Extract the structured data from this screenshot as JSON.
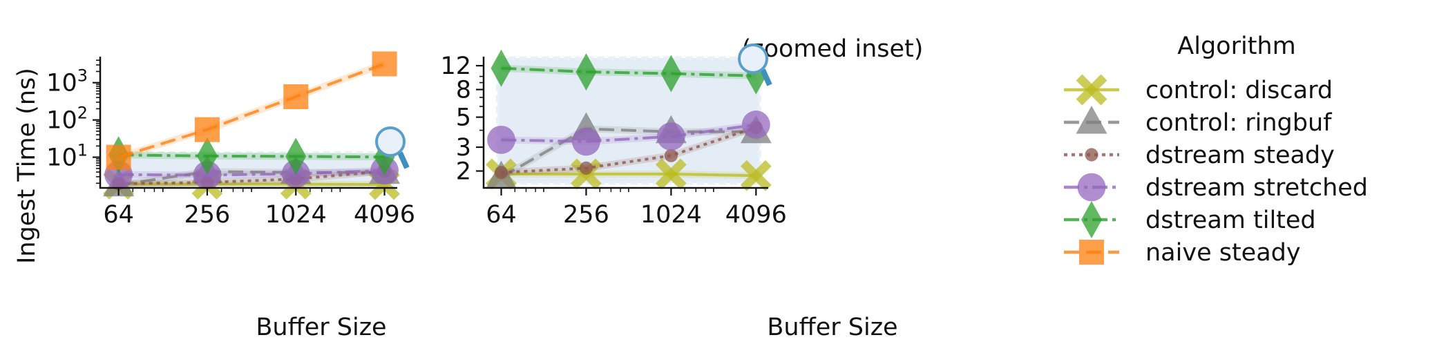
{
  "legend": {
    "title": "Algorithm",
    "items": [
      {
        "label": "control: discard",
        "color": "#bcbd22",
        "marker": "x-marker",
        "dash": "solid"
      },
      {
        "label": "control: ringbuf",
        "color": "#7f7f7f",
        "marker": "triangle-marker",
        "dash": "dashed"
      },
      {
        "label": "dstream steady",
        "color": "#8c564b",
        "marker": "dot-marker",
        "dash": "dotted"
      },
      {
        "label": "dstream stretched",
        "color": "#9467bd",
        "marker": "circle-marker",
        "dash": "dashdot"
      },
      {
        "label": "dstream tilted",
        "color": "#2ca02c",
        "marker": "diamond-marker",
        "dash": "dashdot"
      },
      {
        "label": "naive steady",
        "color": "#ff7f0e",
        "marker": "square-marker",
        "dash": "dashed"
      }
    ]
  },
  "inset_icon": "magnifier-icon",
  "chart_data": [
    {
      "type": "line",
      "title": "",
      "xlabel": "Buffer Size",
      "ylabel": "Ingest Time (ns)",
      "x": [
        64,
        256,
        1024,
        4096
      ],
      "x_tick_labels": [
        "64",
        "256",
        "1024",
        "4096"
      ],
      "xscale": "log2",
      "yscale": "log10",
      "ylim": [
        1.5,
        5000
      ],
      "y_ticks": [
        {
          "value": 10,
          "base": "10",
          "exp": "1"
        },
        {
          "value": 100,
          "base": "10",
          "exp": "2"
        },
        {
          "value": 1000,
          "base": "10",
          "exp": "3"
        }
      ],
      "grid": false,
      "inset_region": {
        "x": [
          64,
          4096
        ],
        "y": [
          1.5,
          13
        ]
      },
      "series": [
        {
          "name": "control: discard",
          "values": [
            1.9,
            1.9,
            1.9,
            1.85
          ]
        },
        {
          "name": "control: ringbuf",
          "values": [
            1.8,
            4.1,
            3.9,
            3.9
          ]
        },
        {
          "name": "dstream steady",
          "values": [
            1.95,
            2.1,
            2.6,
            4.2
          ]
        },
        {
          "name": "dstream stretched",
          "values": [
            3.4,
            3.3,
            3.6,
            4.4
          ]
        },
        {
          "name": "dstream tilted",
          "values": [
            11.5,
            10.8,
            10.5,
            10.1
          ]
        },
        {
          "name": "naive steady",
          "values": [
            10,
            55,
            420,
            3200
          ]
        }
      ]
    },
    {
      "type": "line",
      "title": "(zoomed inset)",
      "xlabel": "Buffer Size",
      "ylabel": "",
      "x": [
        64,
        256,
        1024,
        4096
      ],
      "x_tick_labels": [
        "64",
        "256",
        "1024",
        "4096"
      ],
      "xscale": "log2",
      "yscale": "log",
      "ylim": [
        1.5,
        14
      ],
      "y_ticks": [
        {
          "value": 2,
          "label": "2"
        },
        {
          "value": 3,
          "label": "3"
        },
        {
          "value": 5,
          "label": "5"
        },
        {
          "value": 8,
          "label": "8"
        },
        {
          "value": 12,
          "label": "12"
        }
      ],
      "grid": false,
      "series": [
        {
          "name": "control: discard",
          "values": [
            1.9,
            1.9,
            1.9,
            1.85
          ]
        },
        {
          "name": "control: ringbuf",
          "values": [
            1.8,
            4.1,
            3.9,
            3.9
          ]
        },
        {
          "name": "dstream steady",
          "values": [
            1.95,
            2.1,
            2.6,
            4.2
          ]
        },
        {
          "name": "dstream stretched",
          "values": [
            3.4,
            3.3,
            3.6,
            4.4
          ]
        },
        {
          "name": "dstream tilted",
          "values": [
            11.5,
            10.8,
            10.5,
            10.1
          ]
        }
      ]
    }
  ]
}
